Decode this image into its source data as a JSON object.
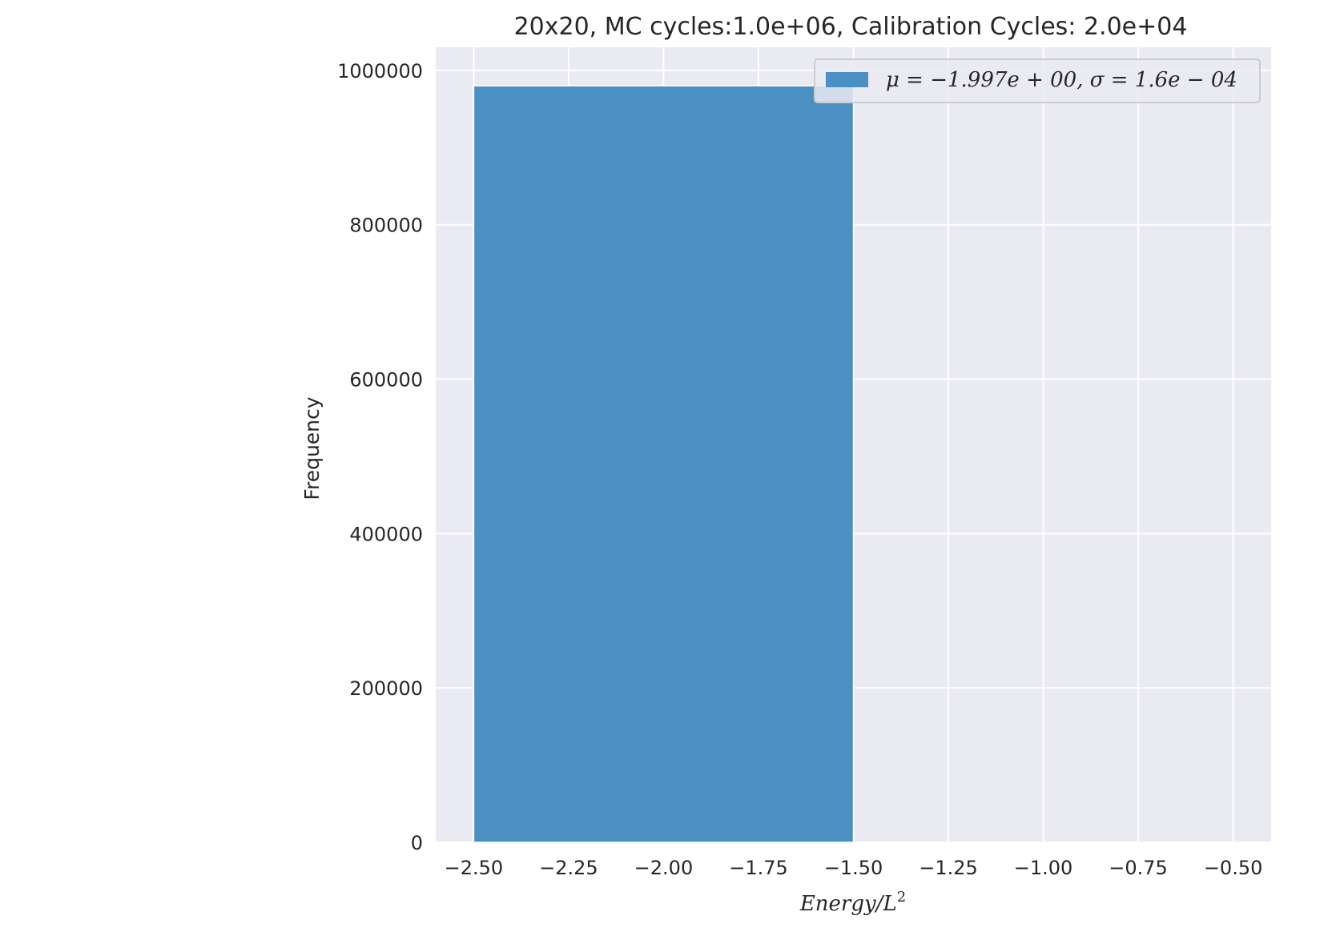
{
  "chart_data": {
    "type": "bar",
    "title": "20x20, MC cycles:1.0e+06, Calibration Cycles: 2.0e+04",
    "xlabel": "Energy/L²",
    "ylabel": "Frequency",
    "xlim": [
      -2.6,
      -0.4
    ],
    "ylim": [
      0,
      1030000
    ],
    "xticks": [
      -2.5,
      -2.25,
      -2.0,
      -1.75,
      -1.5,
      -1.25,
      -1.0,
      -0.75,
      -0.5
    ],
    "xtick_labels": [
      "−2.50",
      "−2.25",
      "−2.00",
      "−1.75",
      "−1.50",
      "−1.25",
      "−1.00",
      "−0.75",
      "−0.50"
    ],
    "yticks": [
      0,
      200000,
      400000,
      600000,
      800000,
      1000000
    ],
    "ytick_labels": [
      "0",
      "200000",
      "400000",
      "600000",
      "800000",
      "1000000"
    ],
    "bars": [
      {
        "x_start": -2.5,
        "x_end": -1.5,
        "value": 980000
      }
    ],
    "series": [
      {
        "name": "μ = −1.997e + 00, σ = 1.6e − 04",
        "color": "#4c8fc3"
      }
    ],
    "grid": true,
    "legend_position": "top-right",
    "colors": {
      "plot_background": "#eaeaf2",
      "grid": "#ffffff",
      "bar": "#4c8fc3"
    }
  }
}
